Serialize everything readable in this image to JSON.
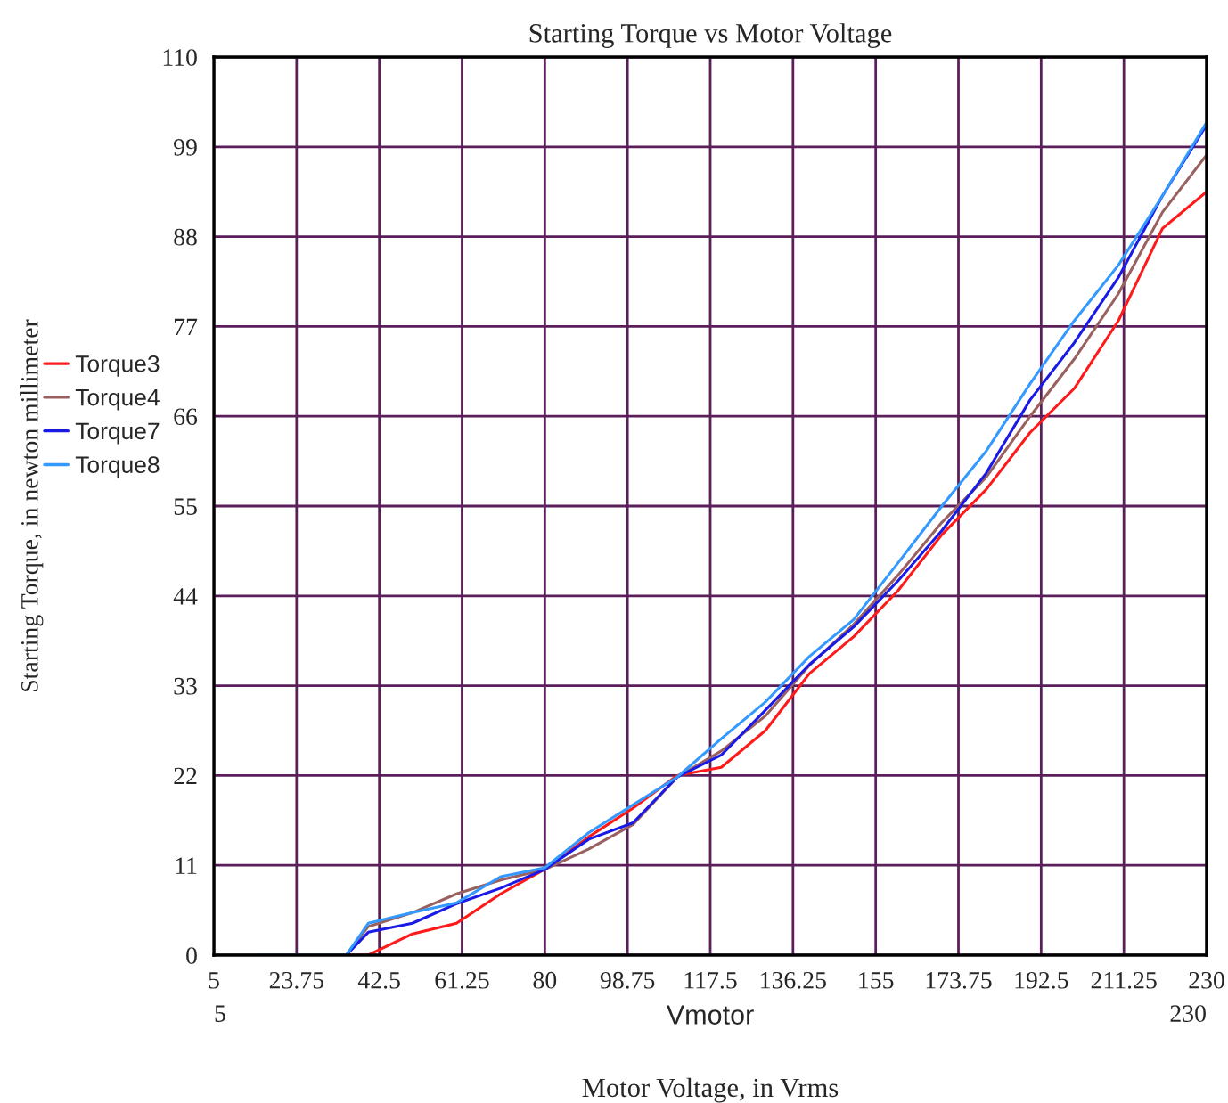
{
  "chart_data": {
    "type": "line",
    "title": "Starting Torque vs Motor Voltage",
    "xlabel": "Motor Voltage, in Vrms",
    "ylabel": "Starting Torque, in newton millimeter",
    "annotations": [
      "5",
      "Vmotor",
      "230"
    ],
    "x": [
      15,
      25,
      35,
      40,
      50,
      60,
      70,
      80,
      90,
      100,
      110,
      120,
      130,
      140,
      150,
      160,
      170,
      180,
      190,
      200,
      210,
      220,
      230
    ],
    "series": [
      {
        "name": "Torque3",
        "color": "#ff1a1a",
        "values": [
          null,
          null,
          0,
          0,
          2.6,
          3.9,
          7.5,
          10.5,
          14.5,
          18,
          22,
          23,
          27.5,
          34.5,
          39,
          44.6,
          51.5,
          57,
          64,
          69.4,
          77.7,
          89,
          93.5
        ]
      },
      {
        "name": "Torque4",
        "color": "#9a6060",
        "values": [
          null,
          null,
          0,
          3.5,
          5.2,
          7.5,
          9.2,
          10.5,
          13,
          16,
          21.8,
          25,
          29.3,
          35.5,
          40.5,
          46.5,
          53,
          58.5,
          66,
          73,
          81,
          91,
          98
        ]
      },
      {
        "name": "Torque7",
        "color": "#1a1ae6",
        "values": [
          null,
          null,
          0,
          2.8,
          3.9,
          6.3,
          8.2,
          10.5,
          14.2,
          16.2,
          21.8,
          24.5,
          30,
          35.6,
          40.2,
          45.8,
          52,
          59,
          68,
          75,
          83,
          93,
          101.7
        ]
      },
      {
        "name": "Torque8",
        "color": "#3399ff",
        "values": [
          0,
          0,
          0,
          3.9,
          5.2,
          6.4,
          9.6,
          10.7,
          15,
          18.4,
          21.8,
          26.5,
          31,
          36.6,
          41.1,
          48,
          55,
          61.7,
          70,
          77.7,
          84.5,
          93,
          102
        ]
      }
    ],
    "xlim": [
      5,
      230
    ],
    "ylim": [
      0,
      110
    ],
    "xticks": [
      5,
      23.75,
      42.5,
      61.25,
      80,
      98.75,
      117.5,
      136.25,
      155,
      173.75,
      192.5,
      211.25,
      230
    ],
    "yticks": [
      0,
      11,
      22,
      33,
      44,
      55,
      66,
      77,
      88,
      99,
      110
    ],
    "grid": true,
    "legend": "left"
  }
}
